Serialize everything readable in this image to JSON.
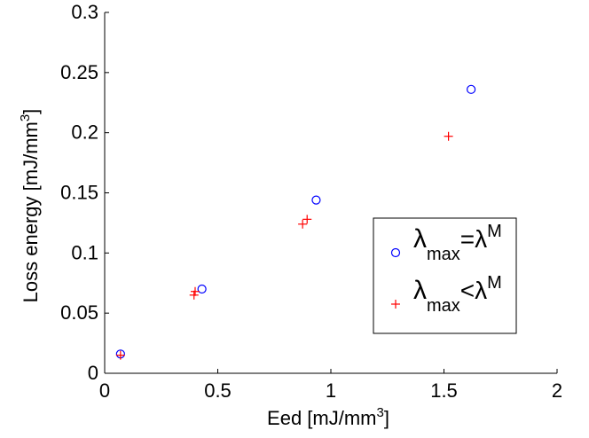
{
  "chart_data": {
    "type": "scatter",
    "xlabel": "Eed [mJ/mm",
    "xlabel_sup": "3",
    "xlabel_end": "]",
    "ylabel": "Loss energy [mJ/mm",
    "ylabel_sup": "3",
    "ylabel_end": "]",
    "xlim": [
      0,
      2
    ],
    "ylim": [
      0,
      0.3
    ],
    "x_ticks": [
      0,
      0.5,
      1,
      1.5,
      2
    ],
    "x_tick_labels": [
      "0",
      "0.5",
      "1",
      "1.5",
      "2"
    ],
    "y_ticks": [
      0,
      0.05,
      0.1,
      0.15,
      0.2,
      0.25,
      0.3
    ],
    "y_tick_labels": [
      "0",
      "0.05",
      "0.1",
      "0.15",
      "0.2",
      "0.25",
      "0.3"
    ],
    "grid": false,
    "legend_position": "right",
    "series": [
      {
        "marker": "circle",
        "color": "#0000ff",
        "legend": {
          "base": "λ",
          "sub": "max",
          "op": "=λ",
          "sup": "M"
        },
        "x": [
          0.07,
          0.43,
          0.935,
          1.62
        ],
        "y": [
          0.016,
          0.07,
          0.144,
          0.236
        ]
      },
      {
        "marker": "plus",
        "color": "#ff0000",
        "legend": {
          "base": "λ",
          "sub": "max",
          "op": "<λ",
          "sup": "M"
        },
        "x": [
          0.07,
          0.395,
          0.4,
          0.875,
          0.895,
          1.52
        ],
        "y": [
          0.015,
          0.065,
          0.068,
          0.124,
          0.128,
          0.197
        ]
      }
    ]
  }
}
